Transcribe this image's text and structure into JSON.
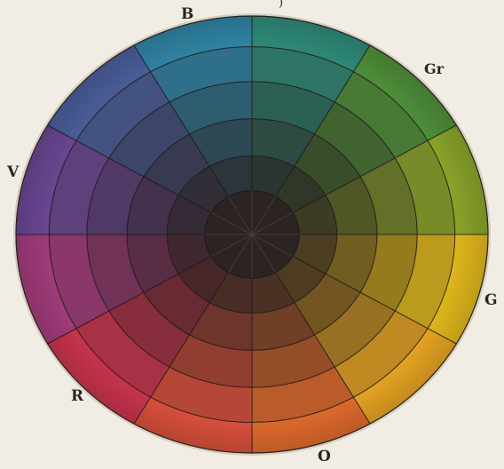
{
  "labels": {
    "blue": "B",
    "green_blue": "Gr",
    "violet": "V",
    "yellow": "G",
    "red": "R",
    "orange": "O"
  },
  "top_mark": ")",
  "wheel": {
    "sectors": 12,
    "rings": 5,
    "hues": [
      {
        "name": "blue-green",
        "color": "#2f8a78"
      },
      {
        "name": "green",
        "color": "#4f8f3a"
      },
      {
        "name": "yellow-green",
        "color": "#8aa52a"
      },
      {
        "name": "yellow",
        "color": "#e0b81c"
      },
      {
        "name": "yellow-orange",
        "color": "#e6a422"
      },
      {
        "name": "orange",
        "color": "#df6a2c"
      },
      {
        "name": "red-orange",
        "color": "#d8503b"
      },
      {
        "name": "red",
        "color": "#c9344e"
      },
      {
        "name": "red-violet",
        "color": "#a23c7b"
      },
      {
        "name": "violet",
        "color": "#6a4793"
      },
      {
        "name": "blue-violet",
        "color": "#4a5e9a"
      },
      {
        "name": "blue",
        "color": "#2f84a3"
      }
    ],
    "center_color": "#2b2422",
    "line_color": "#1e1a18"
  }
}
